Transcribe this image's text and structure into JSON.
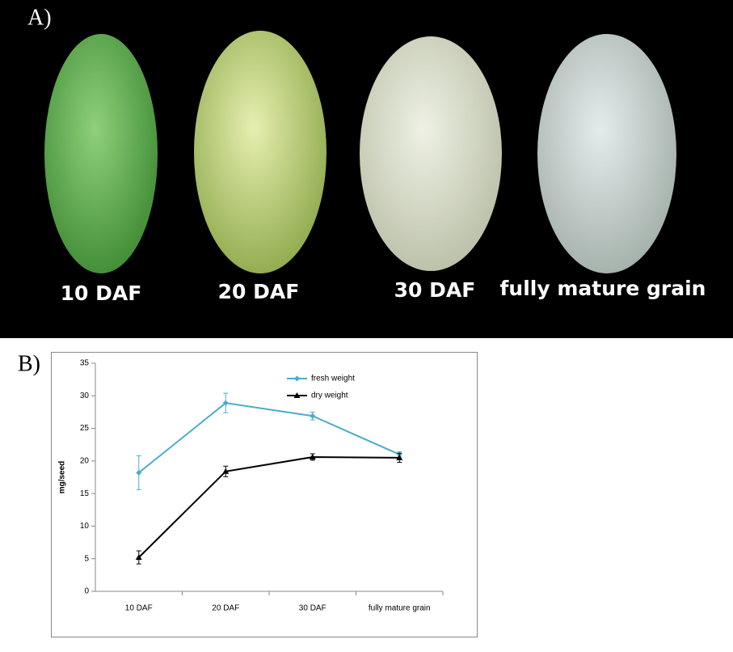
{
  "figure": {
    "panel_a_label": "A)",
    "panel_b_label": "B)",
    "captions": [
      "10 DAF",
      "20 DAF",
      "30 DAF",
      "fully mature grain"
    ]
  },
  "chart_data": {
    "type": "line",
    "y_label": "mg/seed",
    "categories": [
      "10 DAF",
      "20 DAF",
      "30 DAF",
      "fully mature grain"
    ],
    "series": [
      {
        "name": "fresh weight",
        "color": "#4bacc6",
        "marker": "diamond",
        "values": [
          18.2,
          28.9,
          26.9,
          21.0
        ],
        "errors": [
          2.6,
          1.5,
          0.6,
          0.4
        ]
      },
      {
        "name": "dry weight",
        "color": "#000000",
        "marker": "triangle",
        "values": [
          5.2,
          18.4,
          20.6,
          20.5
        ],
        "errors": [
          1.0,
          0.8,
          0.5,
          0.7
        ]
      }
    ],
    "ylim": [
      0,
      35
    ],
    "yticks": [
      0,
      5,
      10,
      15,
      20,
      25,
      30,
      35
    ],
    "grid": false,
    "legend": "top"
  }
}
